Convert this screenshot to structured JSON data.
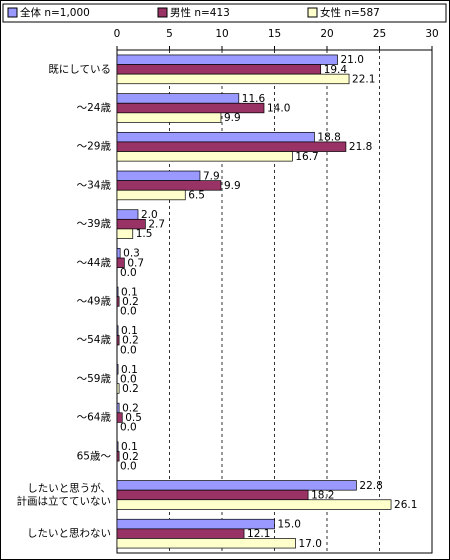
{
  "chart_data": {
    "type": "hbar",
    "categories": [
      "既にしている",
      "～24歳",
      "～29歳",
      "～34歳",
      "～39歳",
      "～44歳",
      "～49歳",
      "～54歳",
      "～59歳",
      "～64歳",
      "65歳～",
      "したいと思うが、\n計画は立てていない",
      "したいと思わない"
    ],
    "series": [
      {
        "name": "全体 n=1,000",
        "color": "#9999ff",
        "values": [
          21.0,
          11.6,
          18.8,
          7.9,
          2.0,
          0.3,
          0.1,
          0.1,
          0.1,
          0.2,
          0.1,
          22.8,
          15.0
        ],
        "value_labels": [
          "21.0",
          "11.6",
          "18.8",
          "7.9",
          "2.0",
          "0.3",
          "0.1",
          "0.1",
          "0.1",
          "0.2",
          "0.1",
          "22.8",
          "15.0"
        ]
      },
      {
        "name": "男性 n=413",
        "color": "#993366",
        "values": [
          19.4,
          14.0,
          21.8,
          9.9,
          2.7,
          0.7,
          0.2,
          0.2,
          0.0,
          0.5,
          0.2,
          18.2,
          12.1
        ],
        "value_labels": [
          "19.4",
          "14.0",
          "21.8",
          "9.9",
          "2.7",
          "0.7",
          "0.2",
          "0.2",
          "0.0",
          "0.5",
          "0.2",
          "18.2",
          "12.1"
        ]
      },
      {
        "name": "女性 n=587",
        "color": "#ffffcc",
        "values": [
          22.1,
          9.9,
          16.7,
          6.5,
          1.5,
          0.0,
          0.0,
          0.0,
          0.2,
          0.0,
          0.0,
          26.1,
          17.0
        ],
        "value_labels": [
          "22.1",
          "9.9",
          "16.7",
          "6.5",
          "1.5",
          "0.0",
          "0.0",
          "0.0",
          "0.2",
          "0.0",
          "0.0",
          "26.1",
          "17.0"
        ]
      }
    ],
    "xlim": [
      0,
      30
    ],
    "xticks": [
      0,
      5,
      10,
      15,
      20,
      25,
      30
    ],
    "grid": true
  }
}
